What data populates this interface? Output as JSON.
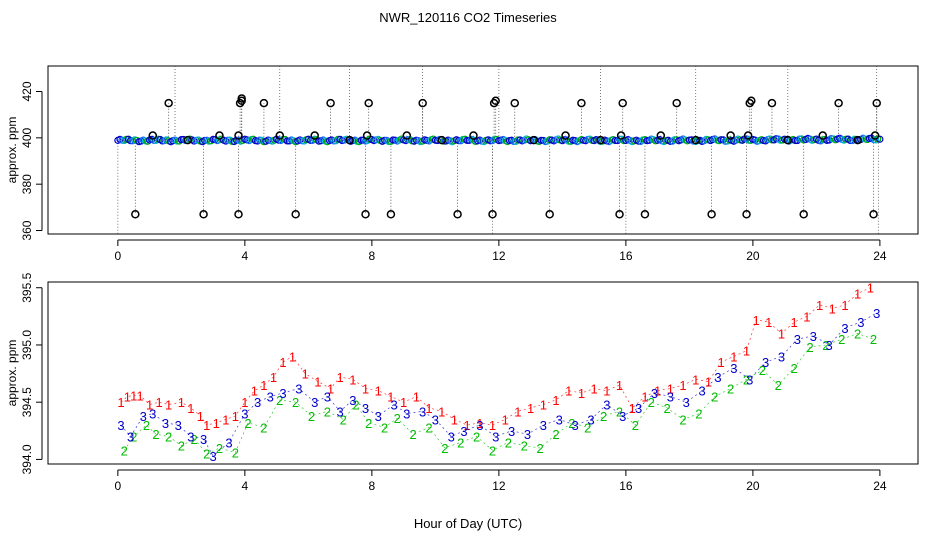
{
  "title": "NWR_120116  CO2 Timeseries",
  "xlabel": "Hour of Day (UTC)",
  "chart_data": [
    {
      "type": "scatter",
      "title": "NWR_120116  CO2 Timeseries",
      "xlabel": "Hour of Day (UTC)",
      "ylabel": "approx. ppm",
      "xlim": [
        -2.2,
        25.2
      ],
      "ylim": [
        358.5,
        431
      ],
      "xticks": [
        0,
        4,
        8,
        12,
        16,
        20,
        24
      ],
      "yticks": [
        360,
        380,
        400,
        420
      ],
      "series": [
        {
          "name": "outliers (black circles)",
          "color": "#000000",
          "x": [
            0.55,
            1.1,
            1.6,
            2.2,
            2.7,
            3.2,
            3.8,
            3.8,
            3.85,
            3.9,
            3.9,
            4.6,
            5.1,
            5.6,
            6.2,
            6.7,
            7.3,
            7.8,
            7.85,
            7.9,
            8.6,
            9.1,
            9.6,
            10.2,
            10.7,
            11.2,
            11.8,
            11.85,
            11.9,
            12.5,
            13.1,
            13.6,
            14.1,
            14.6,
            15.2,
            15.8,
            15.85,
            15.9,
            16.6,
            17.1,
            17.6,
            18.2,
            18.7,
            19.3,
            19.8,
            19.85,
            19.9,
            19.95,
            20.6,
            21.1,
            21.6,
            22.2,
            22.7,
            23.3,
            23.8,
            23.85,
            23.9
          ],
          "y": [
            367,
            401,
            415,
            399,
            367,
            401,
            367,
            401,
            415,
            416,
            417,
            415,
            401,
            367,
            401,
            415,
            399,
            367,
            401,
            415,
            367,
            401,
            415,
            399,
            367,
            401,
            367,
            415,
            416,
            415,
            399,
            367,
            401,
            415,
            399,
            367,
            401,
            415,
            367,
            401,
            415,
            399,
            367,
            401,
            367,
            401,
            415,
            416,
            415,
            399,
            367,
            401,
            415,
            399,
            367,
            401,
            415
          ]
        },
        {
          "name": "measurements (blue/cyan/green circles)",
          "color": "#0000cc",
          "x_range": [
            0,
            24
          ],
          "y_range": [
            398.5,
            400.2
          ]
        }
      ]
    },
    {
      "type": "scatter",
      "ylabel": "approx. ppm",
      "xlim": [
        -2.2,
        25.2
      ],
      "ylim": [
        393.96,
        395.55
      ],
      "xticks": [
        0,
        4,
        8,
        12,
        16,
        20,
        24
      ],
      "yticks": [
        394.0,
        394.5,
        395.0,
        395.5
      ],
      "ytick_labels": [
        "394.0",
        "394.5",
        "395.0",
        "395.5"
      ],
      "series": [
        {
          "name": "1",
          "color": "#ff0000",
          "x": [
            0.1,
            0.3,
            0.5,
            0.7,
            1.0,
            1.3,
            1.6,
            2.0,
            2.3,
            2.6,
            2.8,
            3.1,
            3.4,
            3.7,
            4.0,
            4.3,
            4.6,
            4.9,
            5.2,
            5.5,
            5.9,
            6.3,
            6.7,
            7.0,
            7.4,
            7.8,
            8.2,
            8.6,
            9.0,
            9.4,
            9.8,
            10.2,
            10.6,
            11.0,
            11.4,
            11.8,
            12.2,
            12.6,
            13.0,
            13.4,
            13.8,
            14.2,
            14.6,
            15.0,
            15.4,
            15.8,
            16.2,
            16.6,
            17.0,
            17.4,
            17.8,
            18.2,
            18.6,
            19.0,
            19.4,
            19.8,
            20.1,
            20.5,
            20.9,
            21.3,
            21.7,
            22.1,
            22.5,
            22.9,
            23.3,
            23.7
          ],
          "y": [
            394.5,
            394.55,
            394.56,
            394.56,
            394.48,
            394.5,
            394.48,
            394.5,
            394.45,
            394.38,
            394.3,
            394.32,
            394.35,
            394.38,
            394.5,
            394.6,
            394.65,
            394.72,
            394.85,
            394.9,
            394.75,
            394.68,
            394.62,
            394.72,
            394.7,
            394.62,
            394.6,
            394.55,
            394.5,
            394.55,
            394.45,
            394.42,
            394.35,
            394.3,
            394.32,
            394.3,
            394.35,
            394.42,
            394.45,
            394.48,
            394.52,
            394.6,
            394.58,
            394.62,
            394.6,
            394.65,
            394.45,
            394.55,
            394.6,
            394.62,
            394.65,
            394.7,
            394.68,
            394.85,
            394.9,
            394.95,
            395.22,
            395.2,
            395.1,
            395.2,
            395.25,
            395.35,
            395.32,
            395.35,
            395.45,
            395.5
          ]
        },
        {
          "name": "2",
          "color": "#00bb00",
          "x": [
            0.2,
            0.5,
            0.9,
            1.2,
            1.6,
            2.0,
            2.4,
            2.8,
            3.2,
            3.7,
            4.1,
            4.6,
            5.1,
            5.6,
            6.1,
            6.6,
            7.1,
            7.5,
            7.9,
            8.4,
            8.8,
            9.3,
            9.8,
            10.3,
            10.8,
            11.3,
            11.8,
            12.3,
            12.8,
            13.3,
            13.8,
            14.3,
            14.8,
            15.3,
            15.8,
            16.3,
            16.8,
            17.3,
            17.8,
            18.3,
            18.8,
            19.3,
            19.8,
            20.3,
            20.8,
            21.3,
            21.8,
            22.3,
            22.8,
            23.3,
            23.8
          ],
          "y": [
            394.08,
            394.2,
            394.3,
            394.22,
            394.2,
            394.12,
            394.18,
            394.05,
            394.1,
            394.06,
            394.32,
            394.28,
            394.52,
            394.5,
            394.38,
            394.42,
            394.35,
            394.48,
            394.32,
            394.28,
            394.36,
            394.22,
            394.28,
            394.1,
            394.15,
            394.2,
            394.08,
            394.15,
            394.12,
            394.1,
            394.22,
            394.32,
            394.28,
            394.38,
            394.42,
            394.3,
            394.5,
            394.45,
            394.35,
            394.4,
            394.55,
            394.62,
            394.7,
            394.78,
            394.65,
            394.8,
            394.98,
            395.0,
            395.05,
            395.1,
            395.05
          ]
        },
        {
          "name": "3",
          "color": "#0000cc",
          "x": [
            0.1,
            0.4,
            0.8,
            1.1,
            1.5,
            1.9,
            2.3,
            2.7,
            3.0,
            3.5,
            4.0,
            4.4,
            4.8,
            5.2,
            5.7,
            6.2,
            6.6,
            7.0,
            7.4,
            7.8,
            8.2,
            8.7,
            9.1,
            9.6,
            10.0,
            10.5,
            10.9,
            11.4,
            11.9,
            12.4,
            12.9,
            13.4,
            13.9,
            14.4,
            14.9,
            15.4,
            15.9,
            16.4,
            16.9,
            17.4,
            17.9,
            18.4,
            18.9,
            19.4,
            19.9,
            20.4,
            20.9,
            21.4,
            21.9,
            22.4,
            22.9,
            23.4,
            23.9
          ],
          "y": [
            394.3,
            394.2,
            394.38,
            394.4,
            394.32,
            394.3,
            394.2,
            394.18,
            394.03,
            394.15,
            394.4,
            394.5,
            394.55,
            394.58,
            394.62,
            394.5,
            394.55,
            394.42,
            394.52,
            394.45,
            394.38,
            394.48,
            394.4,
            394.42,
            394.35,
            394.2,
            394.25,
            394.3,
            394.2,
            394.25,
            394.22,
            394.3,
            394.35,
            394.3,
            394.35,
            394.48,
            394.38,
            394.45,
            394.58,
            394.55,
            394.5,
            394.6,
            394.72,
            394.8,
            394.7,
            394.85,
            394.9,
            395.05,
            395.08,
            395.0,
            395.15,
            395.2,
            395.28
          ]
        }
      ]
    }
  ]
}
